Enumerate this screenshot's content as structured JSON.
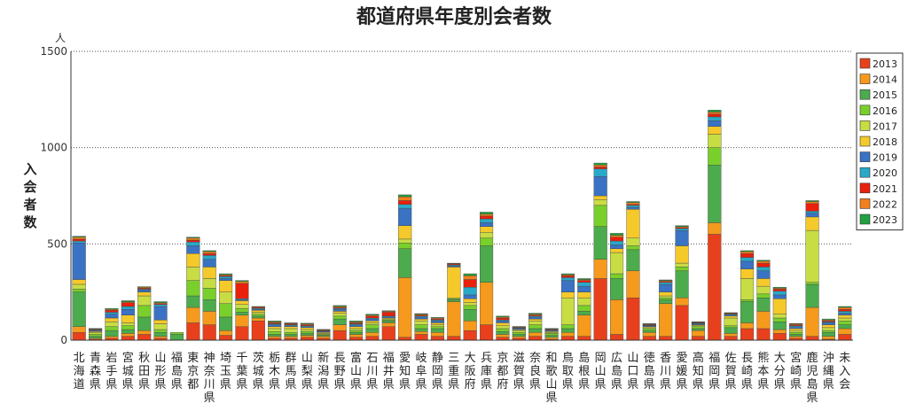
{
  "chart_data": {
    "type": "bar",
    "stacked": true,
    "title": "都道府県年度別会者数",
    "ylabel": "入会者数",
    "yunit": "人",
    "ylim": [
      0,
      1500
    ],
    "yticks": [
      0,
      500,
      1000,
      1500
    ],
    "grid": "horizontal dotted",
    "legend_position": "right",
    "categories": [
      "北海道",
      "青森県",
      "岩手県",
      "宮城県",
      "秋田県",
      "山形県",
      "福島県",
      "東京都",
      "神奈川県",
      "埼玉県",
      "千葉県",
      "茨城県",
      "栃木県",
      "群馬県",
      "山梨県",
      "新潟県",
      "長野県",
      "富山県",
      "石川県",
      "福井県",
      "愛知県",
      "岐阜県",
      "静岡県",
      "三重県",
      "大阪府",
      "兵庫県",
      "京都府",
      "滋賀県",
      "奈良県",
      "和歌山県",
      "鳥取県",
      "島根県",
      "岡山県",
      "広島県",
      "山口県",
      "徳島県",
      "香川県",
      "愛媛県",
      "高知県",
      "福岡県",
      "佐賀県",
      "長崎県",
      "熊本県",
      "大分県",
      "宮崎県",
      "鹿児島県",
      "沖縄県",
      "未入会"
    ],
    "series": [
      {
        "name": "2013",
        "color": "#e8401c",
        "values": [
          40,
          5,
          10,
          20,
          30,
          10,
          0,
          90,
          80,
          25,
          70,
          100,
          10,
          10,
          15,
          10,
          50,
          15,
          20,
          70,
          15,
          30,
          20,
          20,
          50,
          80,
          15,
          10,
          20,
          5,
          20,
          20,
          320,
          30,
          220,
          20,
          20,
          180,
          20,
          550,
          20,
          60,
          60,
          35,
          10,
          20,
          5,
          30
        ]
      },
      {
        "name": "2014",
        "color": "#f59a1c",
        "values": [
          30,
          5,
          10,
          15,
          20,
          10,
          0,
          80,
          70,
          25,
          60,
          15,
          10,
          10,
          10,
          10,
          30,
          15,
          20,
          20,
          310,
          15,
          20,
          180,
          50,
          220,
          15,
          10,
          20,
          10,
          20,
          110,
          100,
          180,
          140,
          20,
          170,
          40,
          30,
          60,
          15,
          30,
          90,
          20,
          10,
          150,
          15,
          30
        ]
      },
      {
        "name": "2015",
        "color": "#4cab4c",
        "values": [
          180,
          10,
          30,
          20,
          70,
          20,
          30,
          60,
          60,
          70,
          15,
          10,
          10,
          10,
          10,
          5,
          30,
          10,
          20,
          10,
          150,
          15,
          20,
          10,
          60,
          190,
          15,
          10,
          20,
          10,
          20,
          20,
          170,
          110,
          110,
          10,
          20,
          140,
          10,
          300,
          30,
          110,
          70,
          40,
          10,
          120,
          20,
          20
        ]
      },
      {
        "name": "2016",
        "color": "#7ad02a",
        "values": [
          15,
          10,
          20,
          20,
          60,
          15,
          10,
          80,
          60,
          70,
          20,
          10,
          15,
          10,
          10,
          5,
          15,
          10,
          20,
          5,
          30,
          20,
          10,
          5,
          20,
          40,
          15,
          10,
          20,
          10,
          20,
          30,
          110,
          25,
          20,
          10,
          10,
          20,
          10,
          90,
          10,
          10,
          20,
          20,
          10,
          10,
          10,
          20
        ]
      },
      {
        "name": "2017",
        "color": "#c8dd44",
        "values": [
          25,
          10,
          25,
          15,
          50,
          30,
          0,
          70,
          50,
          60,
          20,
          10,
          15,
          20,
          10,
          5,
          15,
          10,
          10,
          5,
          20,
          20,
          10,
          5,
          15,
          30,
          15,
          10,
          20,
          5,
          140,
          40,
          30,
          110,
          40,
          5,
          10,
          20,
          5,
          70,
          40,
          110,
          40,
          20,
          10,
          270,
          15,
          15
        ]
      },
      {
        "name": "2018",
        "color": "#f5c92a",
        "values": [
          25,
          5,
          20,
          40,
          20,
          20,
          0,
          70,
          60,
          60,
          20,
          10,
          10,
          10,
          10,
          5,
          10,
          10,
          10,
          5,
          70,
          10,
          10,
          160,
          20,
          30,
          15,
          5,
          10,
          5,
          30,
          30,
          20,
          20,
          150,
          5,
          20,
          90,
          5,
          40,
          10,
          50,
          40,
          80,
          10,
          70,
          15,
          15
        ]
      },
      {
        "name": "2019",
        "color": "#3a72c4",
        "values": [
          190,
          5,
          20,
          30,
          10,
          70,
          0,
          40,
          40,
          10,
          5,
          5,
          10,
          5,
          5,
          5,
          10,
          10,
          10,
          5,
          90,
          10,
          10,
          5,
          20,
          20,
          10,
          5,
          10,
          5,
          60,
          30,
          100,
          20,
          10,
          5,
          40,
          80,
          5,
          30,
          5,
          40,
          40,
          20,
          10,
          20,
          10,
          10
        ]
      },
      {
        "name": "2020",
        "color": "#2aa8c8",
        "values": [
          10,
          3,
          10,
          15,
          5,
          10,
          0,
          20,
          20,
          10,
          5,
          5,
          5,
          5,
          5,
          3,
          5,
          5,
          5,
          5,
          20,
          5,
          5,
          5,
          40,
          20,
          5,
          3,
          5,
          3,
          15,
          20,
          40,
          20,
          10,
          3,
          10,
          10,
          3,
          20,
          5,
          20,
          20,
          20,
          5,
          10,
          5,
          10
        ]
      },
      {
        "name": "2021",
        "color": "#e8200c",
        "values": [
          10,
          3,
          10,
          20,
          5,
          5,
          0,
          10,
          10,
          5,
          80,
          5,
          5,
          5,
          5,
          3,
          5,
          5,
          10,
          20,
          20,
          5,
          5,
          5,
          40,
          15,
          10,
          3,
          5,
          3,
          10,
          10,
          10,
          20,
          5,
          3,
          5,
          5,
          3,
          15,
          3,
          20,
          20,
          10,
          5,
          40,
          5,
          10
        ]
      },
      {
        "name": "2022",
        "color": "#f0801c",
        "values": [
          10,
          3,
          5,
          5,
          5,
          5,
          0,
          10,
          10,
          5,
          10,
          3,
          5,
          3,
          5,
          3,
          5,
          5,
          5,
          5,
          20,
          5,
          5,
          3,
          20,
          10,
          5,
          3,
          5,
          3,
          5,
          5,
          10,
          10,
          10,
          3,
          5,
          5,
          3,
          10,
          3,
          10,
          10,
          5,
          5,
          10,
          5,
          10
        ]
      },
      {
        "name": "2023",
        "color": "#20a040",
        "values": [
          5,
          2,
          5,
          5,
          3,
          5,
          0,
          5,
          5,
          5,
          5,
          2,
          5,
          2,
          3,
          2,
          5,
          5,
          5,
          3,
          10,
          3,
          3,
          2,
          10,
          10,
          5,
          2,
          5,
          2,
          5,
          5,
          10,
          10,
          5,
          2,
          3,
          5,
          2,
          10,
          2,
          5,
          5,
          5,
          2,
          5,
          5,
          5
        ]
      }
    ]
  }
}
